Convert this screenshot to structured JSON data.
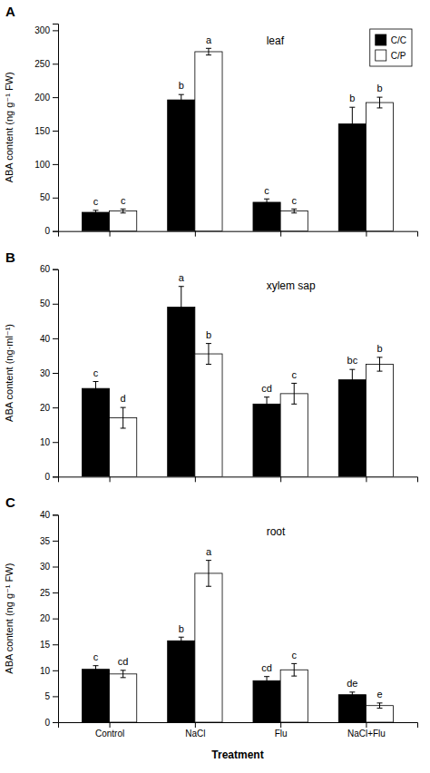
{
  "chart_data": [
    {
      "type": "bar",
      "label": "A",
      "title": "leaf",
      "ylabel": "ABA content (ng g⁻¹ FW)",
      "categories": [
        "Control",
        "NaCl",
        "Flu",
        "NaCl+Flu"
      ],
      "series": [
        {
          "name": "C/C",
          "color": "#000000",
          "values": [
            28,
            196,
            43,
            160
          ],
          "errors": [
            3,
            8,
            5,
            25
          ],
          "letters": [
            "c",
            "b",
            "c",
            "b"
          ]
        },
        {
          "name": "C/P",
          "color": "#ffffff",
          "values": [
            30,
            268,
            30,
            192
          ],
          "errors": [
            3,
            5,
            3,
            8
          ],
          "letters": [
            "c",
            "a",
            "c",
            "b"
          ]
        }
      ],
      "ylim": [
        0,
        310
      ],
      "yticks": [
        0,
        50,
        100,
        150,
        200,
        250,
        300
      ],
      "legend": "upper right",
      "tick_labels": "y",
      "grid": false
    },
    {
      "type": "bar",
      "label": "B",
      "title": "xylem sap",
      "ylabel": "ABA content (ng·ml⁻¹)",
      "categories": [
        "Control",
        "NaCl",
        "Flu",
        "NaCl+Flu"
      ],
      "series": [
        {
          "color": "#000000",
          "values": [
            25.5,
            49,
            21,
            28
          ],
          "errors": [
            2,
            6,
            2,
            3
          ],
          "letters": [
            "c",
            "a",
            "cd",
            "bc"
          ]
        },
        {
          "color": "#ffffff",
          "values": [
            17,
            35.5,
            24,
            32.5
          ],
          "errors": [
            3,
            3,
            3,
            2
          ],
          "letters": [
            "d",
            "b",
            "c",
            "b"
          ]
        }
      ],
      "ylim": [
        0,
        60
      ],
      "yticks": [
        0,
        10,
        20,
        30,
        40,
        50,
        60
      ],
      "tick_labels": "y",
      "grid": false
    },
    {
      "type": "bar",
      "label": "C",
      "title": "root",
      "ylabel": "ABA content (ng g⁻¹ FW)",
      "xlabel": "Treatment",
      "categories": [
        "Control",
        "NaCl",
        "Flu",
        "NaCl+Flu"
      ],
      "series": [
        {
          "color": "#000000",
          "values": [
            10.2,
            15.7,
            8.0,
            5.3
          ],
          "errors": [
            0.7,
            0.7,
            0.8,
            0.5
          ],
          "letters": [
            "c",
            "b",
            "cd",
            "de"
          ]
        },
        {
          "color": "#ffffff",
          "values": [
            9.3,
            28.7,
            10.1,
            3.2
          ],
          "errors": [
            0.7,
            2.5,
            1.2,
            0.5
          ],
          "letters": [
            "cd",
            "a",
            "c",
            "e"
          ]
        }
      ],
      "ylim": [
        0,
        40
      ],
      "yticks": [
        0,
        5,
        10,
        15,
        20,
        25,
        30,
        35,
        40
      ],
      "grid": false
    }
  ]
}
